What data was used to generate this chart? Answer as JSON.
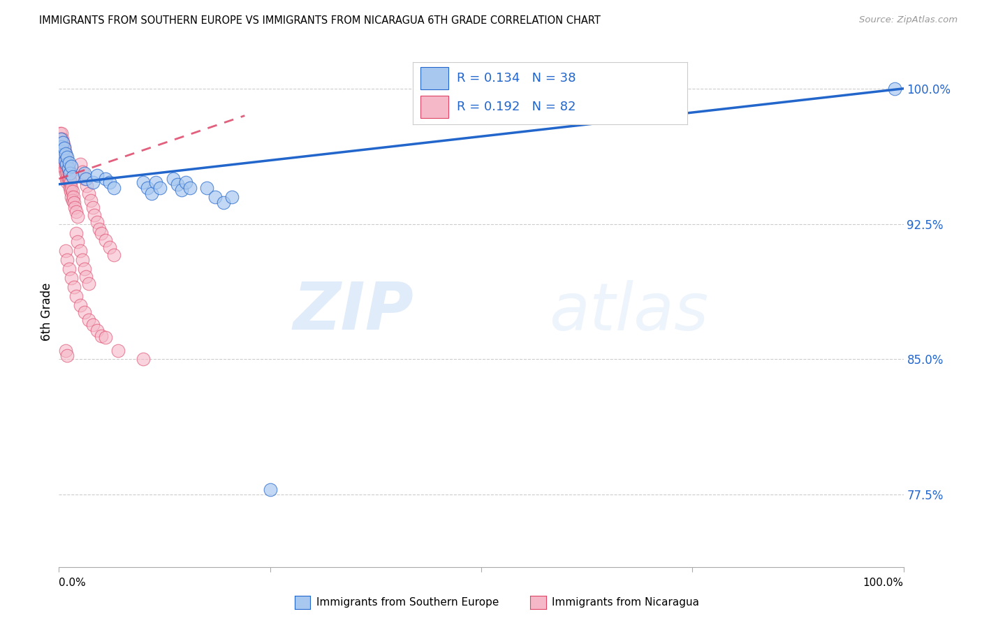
{
  "title": "IMMIGRANTS FROM SOUTHERN EUROPE VS IMMIGRANTS FROM NICARAGUA 6TH GRADE CORRELATION CHART",
  "source": "Source: ZipAtlas.com",
  "ylabel": "6th Grade",
  "yticks": [
    0.775,
    0.85,
    0.925,
    1.0
  ],
  "ytick_labels": [
    "77.5%",
    "85.0%",
    "92.5%",
    "100.0%"
  ],
  "xlim": [
    0.0,
    1.0
  ],
  "ylim": [
    0.735,
    1.018
  ],
  "blue_color": "#a8c8f0",
  "pink_color": "#f5b8c8",
  "blue_line_color": "#2266cc",
  "pink_line_color": "#dd4466",
  "watermark_zip": "ZIP",
  "watermark_atlas": "atlas",
  "legend_label_blue": "Immigrants from Southern Europe",
  "legend_label_pink": "Immigrants from Nicaragua",
  "blue_R": 0.134,
  "blue_N": 38,
  "pink_R": 0.192,
  "pink_N": 82,
  "blue_line_x": [
    0.0,
    1.0
  ],
  "blue_line_y": [
    0.947,
    1.0
  ],
  "pink_line_x": [
    0.0,
    0.22
  ],
  "pink_line_y": [
    0.95,
    0.985
  ],
  "blue_scatter": [
    [
      0.002,
      0.972
    ],
    [
      0.003,
      0.968
    ],
    [
      0.004,
      0.965
    ],
    [
      0.005,
      0.963
    ],
    [
      0.005,
      0.97
    ],
    [
      0.006,
      0.967
    ],
    [
      0.007,
      0.96
    ],
    [
      0.008,
      0.964
    ],
    [
      0.009,
      0.958
    ],
    [
      0.01,
      0.962
    ],
    [
      0.011,
      0.956
    ],
    [
      0.012,
      0.959
    ],
    [
      0.013,
      0.953
    ],
    [
      0.015,
      0.957
    ],
    [
      0.016,
      0.951
    ],
    [
      0.03,
      0.953
    ],
    [
      0.032,
      0.95
    ],
    [
      0.04,
      0.948
    ],
    [
      0.045,
      0.952
    ],
    [
      0.055,
      0.95
    ],
    [
      0.06,
      0.948
    ],
    [
      0.065,
      0.945
    ],
    [
      0.1,
      0.948
    ],
    [
      0.105,
      0.945
    ],
    [
      0.11,
      0.942
    ],
    [
      0.115,
      0.948
    ],
    [
      0.12,
      0.945
    ],
    [
      0.135,
      0.95
    ],
    [
      0.14,
      0.947
    ],
    [
      0.145,
      0.944
    ],
    [
      0.15,
      0.948
    ],
    [
      0.155,
      0.945
    ],
    [
      0.175,
      0.945
    ],
    [
      0.185,
      0.94
    ],
    [
      0.195,
      0.937
    ],
    [
      0.205,
      0.94
    ],
    [
      0.25,
      0.778
    ],
    [
      0.99,
      1.0
    ]
  ],
  "pink_scatter": [
    [
      0.001,
      0.975
    ],
    [
      0.002,
      0.972
    ],
    [
      0.002,
      0.968
    ],
    [
      0.003,
      0.975
    ],
    [
      0.003,
      0.97
    ],
    [
      0.003,
      0.965
    ],
    [
      0.004,
      0.972
    ],
    [
      0.004,
      0.967
    ],
    [
      0.004,
      0.963
    ],
    [
      0.005,
      0.97
    ],
    [
      0.005,
      0.965
    ],
    [
      0.005,
      0.96
    ],
    [
      0.006,
      0.968
    ],
    [
      0.006,
      0.963
    ],
    [
      0.006,
      0.958
    ],
    [
      0.007,
      0.965
    ],
    [
      0.007,
      0.96
    ],
    [
      0.007,
      0.955
    ],
    [
      0.008,
      0.963
    ],
    [
      0.008,
      0.958
    ],
    [
      0.008,
      0.953
    ],
    [
      0.009,
      0.96
    ],
    [
      0.009,
      0.955
    ],
    [
      0.009,
      0.95
    ],
    [
      0.01,
      0.958
    ],
    [
      0.01,
      0.953
    ],
    [
      0.01,
      0.948
    ],
    [
      0.011,
      0.955
    ],
    [
      0.011,
      0.95
    ],
    [
      0.012,
      0.953
    ],
    [
      0.012,
      0.948
    ],
    [
      0.013,
      0.95
    ],
    [
      0.013,
      0.945
    ],
    [
      0.014,
      0.948
    ],
    [
      0.014,
      0.943
    ],
    [
      0.015,
      0.945
    ],
    [
      0.015,
      0.94
    ],
    [
      0.016,
      0.943
    ],
    [
      0.016,
      0.938
    ],
    [
      0.017,
      0.94
    ],
    [
      0.018,
      0.937
    ],
    [
      0.019,
      0.934
    ],
    [
      0.02,
      0.932
    ],
    [
      0.022,
      0.929
    ],
    [
      0.025,
      0.958
    ],
    [
      0.028,
      0.954
    ],
    [
      0.03,
      0.95
    ],
    [
      0.033,
      0.946
    ],
    [
      0.035,
      0.942
    ],
    [
      0.038,
      0.938
    ],
    [
      0.04,
      0.934
    ],
    [
      0.042,
      0.93
    ],
    [
      0.045,
      0.926
    ],
    [
      0.048,
      0.922
    ],
    [
      0.02,
      0.92
    ],
    [
      0.022,
      0.915
    ],
    [
      0.025,
      0.91
    ],
    [
      0.028,
      0.905
    ],
    [
      0.03,
      0.9
    ],
    [
      0.032,
      0.896
    ],
    [
      0.035,
      0.892
    ],
    [
      0.05,
      0.92
    ],
    [
      0.055,
      0.916
    ],
    [
      0.06,
      0.912
    ],
    [
      0.065,
      0.908
    ],
    [
      0.008,
      0.91
    ],
    [
      0.01,
      0.905
    ],
    [
      0.012,
      0.9
    ],
    [
      0.015,
      0.895
    ],
    [
      0.018,
      0.89
    ],
    [
      0.02,
      0.885
    ],
    [
      0.025,
      0.88
    ],
    [
      0.03,
      0.876
    ],
    [
      0.035,
      0.872
    ],
    [
      0.04,
      0.869
    ],
    [
      0.045,
      0.866
    ],
    [
      0.05,
      0.863
    ],
    [
      0.055,
      0.862
    ],
    [
      0.008,
      0.855
    ],
    [
      0.01,
      0.852
    ],
    [
      0.07,
      0.855
    ],
    [
      0.1,
      0.85
    ]
  ]
}
